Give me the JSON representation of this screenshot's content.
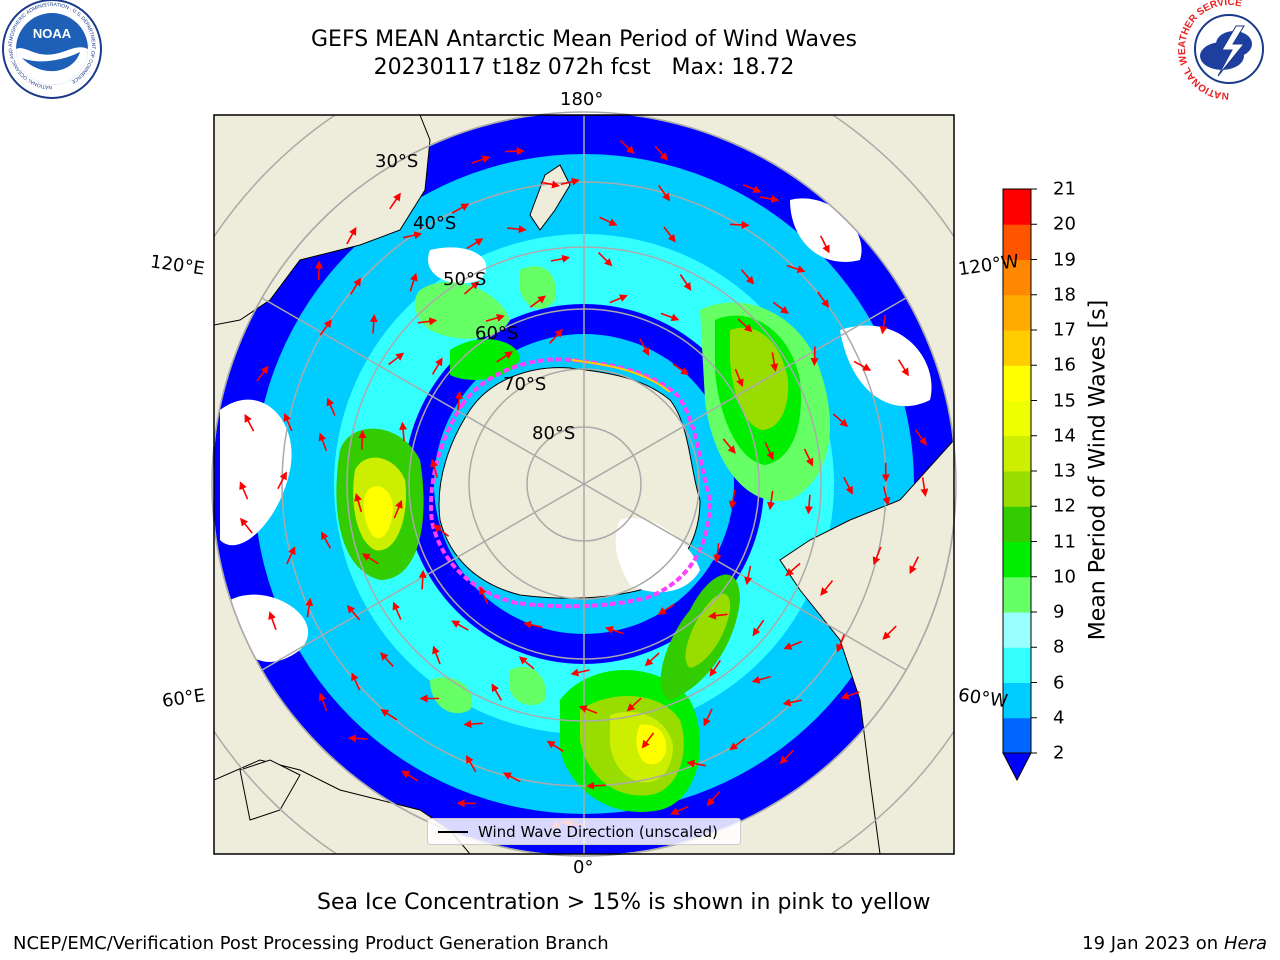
{
  "title": {
    "line1": "GEFS MEAN Antarctic Mean Period of Wind Waves",
    "line2": "20230117 t18z 072h fcst   Max: 18.72"
  },
  "logos": {
    "noaa": {
      "text": "NOAA",
      "ring_text": "NATIONAL OCEANIC AND ATMOSPHERIC ADMINISTRATION · U.S. DEPARTMENT OF COMMERCE"
    },
    "nws": {
      "ring_text": "NATIONAL WEATHER SERVICE"
    }
  },
  "map": {
    "projection": "south-polar-stereographic",
    "longitude_labels": {
      "top": "180°",
      "bottom": "0°",
      "left_upper": "120°E",
      "left_lower": "60°E",
      "right_upper": "120°W",
      "right_lower": "60°W"
    },
    "latitude_labels": [
      "30°S",
      "40°S",
      "50°S",
      "60°S",
      "70°S",
      "80°S"
    ],
    "land_color": "#eeecda",
    "ocean_nodata_color": "#ffffff",
    "sea_ice_edge_color": "#ff40ff",
    "arrow_color": "#ff0000",
    "wave_bands": [
      {
        "region": "Southern Indian Ocean (west of 90°E)",
        "peak_period_s": 14
      },
      {
        "region": "South Atlantic (south of Africa)",
        "peak_period_s": 15
      },
      {
        "region": "South Pacific (east of 140°W)",
        "peak_period_s": 13
      },
      {
        "region": "Drake Passage / Scotia Sea",
        "peak_period_s": 12
      },
      {
        "region": "South of Australia",
        "peak_period_s": 10
      }
    ]
  },
  "legend": {
    "label": "Wind Wave Direction (unscaled)"
  },
  "colorbar": {
    "label": "Mean Period of Wind Waves [s]",
    "ticks": [
      "2",
      "4",
      "6",
      "8",
      "9",
      "10",
      "11",
      "12",
      "13",
      "14",
      "15",
      "16",
      "17",
      "18",
      "19",
      "20",
      "21"
    ],
    "colors": [
      "#0066ff",
      "#00ccff",
      "#33ffff",
      "#99ffff",
      "#66ff66",
      "#00ee00",
      "#33cc00",
      "#99dd00",
      "#ccee00",
      "#eeff00",
      "#ffff00",
      "#ffcc00",
      "#ffaa00",
      "#ff8800",
      "#ff5500",
      "#ff0000"
    ],
    "extend_color": "#0000ff"
  },
  "caption": "Sea Ice Concentration > 15% is shown in pink to yellow",
  "footer": {
    "left": "NCEP/EMC/Verification Post Processing Product Generation Branch",
    "right_date": "19 Jan 2023 on ",
    "right_host": "Hera"
  }
}
